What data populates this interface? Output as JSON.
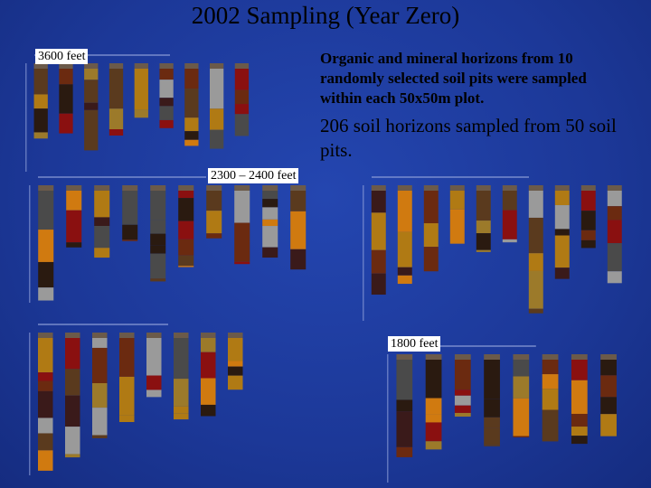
{
  "title": "2002 Sampling (Year Zero)",
  "paragraphs": [
    "Organic and mineral horizons from 10 randomly selected soil pits were sampled within each 50x50m plot.",
    "206 soil horizons sampled from 50 soil pits."
  ],
  "labels": [
    "3600 feet",
    "2300 – 2400 feet",
    "1800 feet"
  ]
}
